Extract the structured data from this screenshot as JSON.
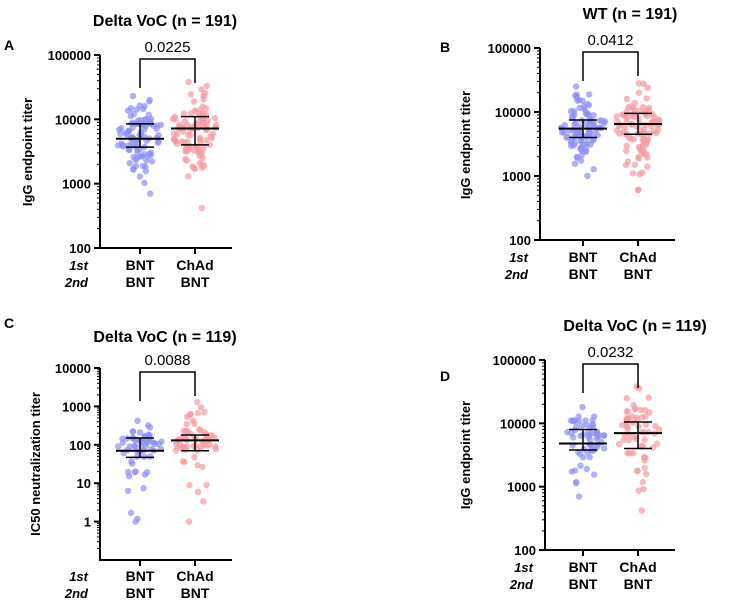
{
  "colors": {
    "BNT/BNT": "#8f8ff5",
    "ChAd/BNT": "#f59aa0",
    "axis": "#000000"
  },
  "chart_data": [
    {
      "panel": "A",
      "type": "scatter",
      "title": "Delta VoC (n = 191)",
      "ylabel": "IgG endpoint titer",
      "yscale": "log",
      "ylim": [
        100,
        100000
      ],
      "yticks": [
        "100",
        "1000",
        "10000",
        "100000"
      ],
      "row_labels": [
        "1st",
        "2nd"
      ],
      "categories": [
        [
          "BNT",
          "BNT"
        ],
        [
          "ChAd",
          "BNT"
        ]
      ],
      "n": 191,
      "p_value": "0.0225",
      "groups": [
        {
          "median": 5000,
          "q1": 3700,
          "q3": 8500,
          "min": 700,
          "max": 23000
        },
        {
          "median": 7200,
          "q1": 4000,
          "q3": 11000,
          "min": 420,
          "max": 38000
        }
      ]
    },
    {
      "panel": "B",
      "type": "scatter",
      "title": "WT (n = 191)",
      "ylabel": "IgG endpoint titer",
      "yscale": "log",
      "ylim": [
        100,
        100000
      ],
      "yticks": [
        "100",
        "1000",
        "10000",
        "100000"
      ],
      "row_labels": [
        "1st",
        "2nd"
      ],
      "categories": [
        [
          "BNT",
          "BNT"
        ],
        [
          "ChAd",
          "BNT"
        ]
      ],
      "n": 191,
      "p_value": "0.0412",
      "groups": [
        {
          "median": 5500,
          "q1": 4000,
          "q3": 7500,
          "min": 1000,
          "max": 25000
        },
        {
          "median": 6500,
          "q1": 4500,
          "q3": 9500,
          "min": 600,
          "max": 28000
        }
      ]
    },
    {
      "panel": "C",
      "type": "scatter",
      "title": "Delta VoC (n = 119)",
      "ylabel": "IC50 neutralization titer",
      "yscale": "log",
      "ylim": [
        0.1,
        10000
      ],
      "yticks": [
        "1",
        "10",
        "100",
        "1000",
        "10000"
      ],
      "row_labels": [
        "1st",
        "2nd"
      ],
      "categories": [
        [
          "BNT",
          "BNT"
        ],
        [
          "ChAd",
          "BNT"
        ]
      ],
      "n": 119,
      "p_value": "0.0088",
      "groups": [
        {
          "median": 70,
          "q1": 47,
          "q3": 150,
          "min": 1,
          "max": 420
        },
        {
          "median": 130,
          "q1": 70,
          "q3": 180,
          "min": 1,
          "max": 1300
        }
      ]
    },
    {
      "panel": "D",
      "type": "scatter",
      "title": "Delta VoC (n = 119)",
      "ylabel": "IgG endpoint titer",
      "yscale": "log",
      "ylim": [
        100,
        100000
      ],
      "yticks": [
        "100",
        "1000",
        "10000",
        "100000"
      ],
      "row_labels": [
        "1st",
        "2nd"
      ],
      "categories": [
        [
          "BNT",
          "BNT"
        ],
        [
          "ChAd",
          "BNT"
        ]
      ],
      "n": 119,
      "p_value": "0.0232",
      "groups": [
        {
          "median": 4800,
          "q1": 3800,
          "q3": 8000,
          "min": 700,
          "max": 18000
        },
        {
          "median": 7000,
          "q1": 4000,
          "q3": 10500,
          "min": 420,
          "max": 38000
        }
      ]
    }
  ]
}
